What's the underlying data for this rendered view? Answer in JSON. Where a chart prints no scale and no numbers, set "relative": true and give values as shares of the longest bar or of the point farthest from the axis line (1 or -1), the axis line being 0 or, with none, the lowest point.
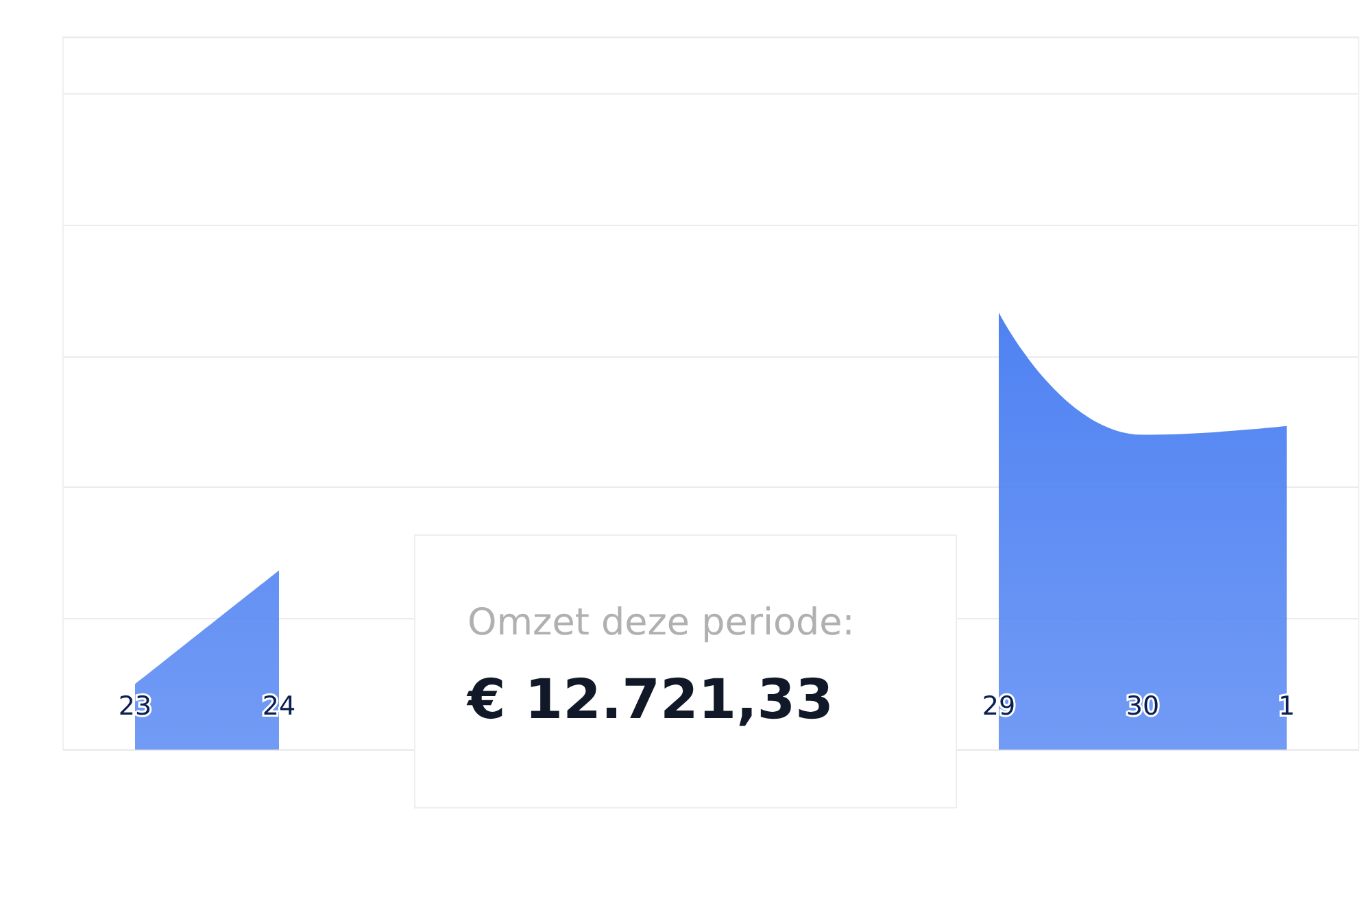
{
  "chart_data": {
    "type": "area",
    "relative": true,
    "categories": [
      "23",
      "24",
      null,
      null,
      null,
      null,
      "29",
      "30",
      "1"
    ],
    "series": [
      {
        "color": "#4f82f2",
        "values": [
          0.15,
          0.41,
          null,
          null,
          null,
          null,
          1,
          0.72,
          0.74
        ]
      }
    ],
    "grid": "y",
    "marker": "none",
    "annotations": [
      "Omzet deze periode:",
      "€ 12.721,33"
    ]
  }
}
